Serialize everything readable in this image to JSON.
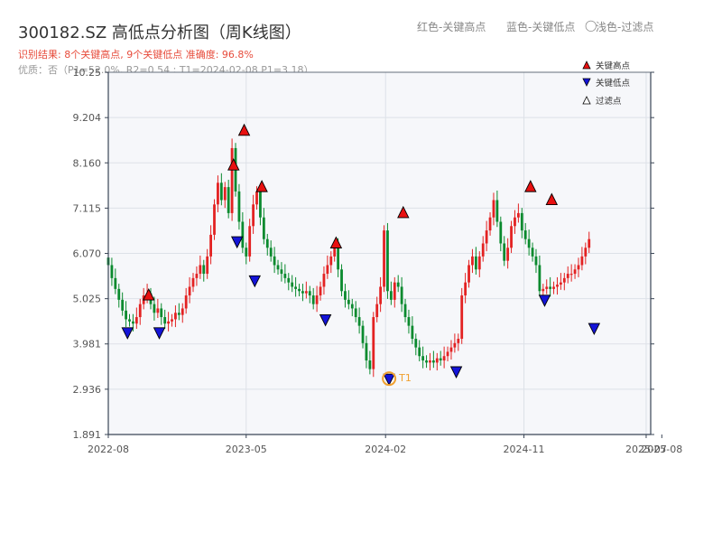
{
  "header": {
    "title": "300182.SZ 高低点分析图（周K线图）",
    "legend_red": "红色-关键高点",
    "legend_blue": "蓝色-关键低点",
    "legend_light_symbol": "◯",
    "legend_light": "浅色-过滤点",
    "result": "识别结果: 8个关键高点, 9个关键低点  准确度: 96.8%",
    "quality": "优质：否（P1=52.0%, R2=0.54 ; T1=2024-02-08 P1=3.18）"
  },
  "legend": {
    "high": "关键高点",
    "low": "关键低点",
    "filtered": "过滤点"
  },
  "colors": {
    "up": "#e32222",
    "down": "#0a8a2e",
    "high_marker": "#e81010",
    "low_marker": "#1414d8",
    "t1_ring": "#f0a030",
    "plot_bg": "#f6f7fa",
    "grid": "#dde1e8",
    "axis": "#3a4556"
  },
  "chart_data": {
    "type": "candlestick",
    "title": "300182.SZ 高低点分析图（周K线图）",
    "xlabel": "",
    "ylabel": "",
    "ylim": [
      1.891,
      10.25
    ],
    "yticks": [
      1.891,
      2.936,
      3.981,
      5.025,
      6.07,
      7.115,
      8.16,
      9.204,
      10.25
    ],
    "xlim": [
      "2022-08-01",
      "2025-07-10"
    ],
    "xticks": [
      {
        "date": "2022-08-01",
        "label": "2022-08"
      },
      {
        "date": "2023-05-01",
        "label": "2023-05"
      },
      {
        "date": "2024-02-01",
        "label": "2024-02"
      },
      {
        "date": "2024-11-01",
        "label": "2024-11"
      },
      {
        "date": "2025-07-01",
        "label": "2025-07"
      },
      {
        "date": "2025-08-01",
        "label": "2025-08"
      }
    ],
    "grid": true,
    "legend_position": "top-right",
    "series": [
      {
        "name": "price",
        "date_start": "2022-08-01",
        "interval_days": 7,
        "values": [
          5.8,
          5.5,
          5.25,
          5.0,
          4.75,
          4.55,
          4.5,
          4.45,
          4.6,
          4.9,
          5.1,
          5.15,
          4.9,
          4.7,
          4.8,
          4.6,
          4.45,
          4.5,
          4.55,
          4.7,
          4.65,
          4.8,
          5.1,
          5.3,
          5.5,
          5.6,
          5.8,
          5.6,
          6.0,
          6.5,
          7.2,
          7.7,
          7.3,
          7.6,
          7.0,
          8.5,
          7.5,
          6.8,
          6.2,
          6.0,
          6.7,
          7.2,
          7.5,
          6.9,
          6.4,
          6.2,
          6.0,
          5.8,
          5.7,
          5.6,
          5.5,
          5.4,
          5.3,
          5.25,
          5.2,
          5.15,
          5.2,
          5.1,
          4.9,
          5.1,
          5.3,
          5.6,
          5.8,
          6.0,
          6.2,
          5.7,
          5.2,
          5.0,
          4.9,
          4.8,
          4.6,
          4.4,
          4.0,
          3.6,
          3.4,
          4.6,
          4.9,
          5.3,
          6.6,
          5.2,
          5.0,
          5.4,
          5.3,
          4.9,
          4.6,
          4.4,
          4.1,
          3.9,
          3.7,
          3.6,
          3.55,
          3.6,
          3.55,
          3.65,
          3.6,
          3.7,
          3.8,
          3.9,
          4.0,
          4.1,
          5.1,
          5.4,
          5.8,
          6.0,
          5.7,
          6.0,
          6.3,
          6.6,
          6.9,
          7.3,
          6.8,
          6.3,
          5.9,
          6.2,
          6.7,
          6.9,
          7.0,
          6.6,
          6.4,
          6.2,
          6.0,
          5.8,
          5.2,
          5.25,
          5.3,
          5.25,
          5.3,
          5.35,
          5.4,
          5.5,
          5.6,
          5.6,
          5.7,
          5.8,
          6.0,
          6.2,
          6.4
        ]
      }
    ],
    "key_highs": [
      {
        "date": "2022-10-20",
        "value": 5.1
      },
      {
        "date": "2023-04-06",
        "value": 8.1
      },
      {
        "date": "2023-04-27",
        "value": 8.9
      },
      {
        "date": "2023-06-01",
        "value": 7.6
      },
      {
        "date": "2023-10-26",
        "value": 6.3
      },
      {
        "date": "2024-03-07",
        "value": 7.0
      },
      {
        "date": "2024-11-14",
        "value": 7.6
      },
      {
        "date": "2024-12-26",
        "value": 7.3
      }
    ],
    "key_lows": [
      {
        "date": "2022-09-08",
        "value": 4.25
      },
      {
        "date": "2022-11-10",
        "value": 4.25
      },
      {
        "date": "2023-04-13",
        "value": 6.35
      },
      {
        "date": "2023-05-18",
        "value": 5.45
      },
      {
        "date": "2023-10-05",
        "value": 4.55
      },
      {
        "date": "2024-02-08",
        "value": 3.18
      },
      {
        "date": "2024-06-20",
        "value": 3.35
      },
      {
        "date": "2024-12-12",
        "value": 5.0
      },
      {
        "date": "2025-03-20",
        "value": 4.35
      }
    ],
    "t1": {
      "date": "2024-02-08",
      "value": 3.18,
      "label": "T1"
    }
  }
}
